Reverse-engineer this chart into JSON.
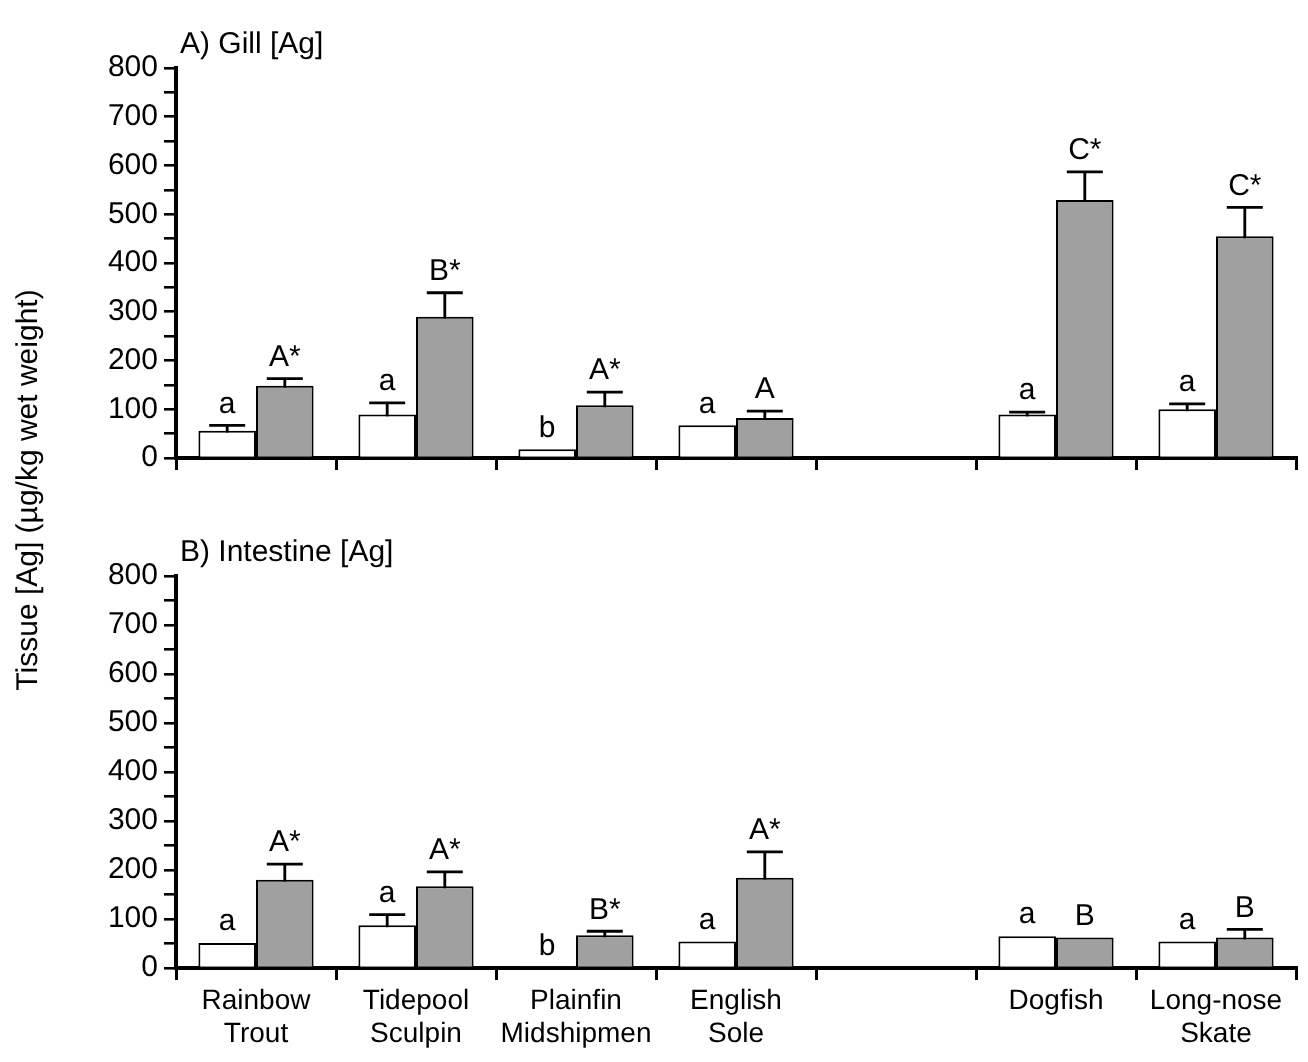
{
  "chart_data": [
    {
      "type": "bar",
      "title": "A) Gill [Ag]",
      "ylabel": "Tissue [Ag]  (µg/kg wet weight)",
      "categories": [
        null,
        null,
        null,
        null,
        null,
        null,
        null
      ],
      "ylim": [
        0,
        800
      ],
      "yticks": [
        0,
        {
          "value": 50,
          "label": null
        },
        100,
        {
          "value": 150,
          "label": null
        },
        200,
        {
          "value": 250,
          "label": null
        },
        300,
        {
          "value": 350,
          "label": null
        },
        400,
        {
          "value": 450,
          "label": null
        },
        500,
        {
          "value": 550,
          "label": null
        },
        600,
        {
          "value": 650,
          "label": null
        },
        700,
        {
          "value": 750,
          "label": null
        },
        800
      ],
      "series": [
        {
          "color": "#ffffff",
          "values": [
            56,
            89,
            18,
            67,
            null,
            89,
            100
          ],
          "errors": [
            11,
            24,
            null,
            null,
            null,
            5,
            11
          ],
          "value_labels": [
            "a",
            "a",
            "b",
            "a",
            null,
            "a",
            "a"
          ]
        },
        {
          "color": "#a0a0a0",
          "values": [
            148,
            290,
            108,
            82,
            null,
            529,
            455
          ],
          "errors": [
            15,
            49,
            27,
            14,
            null,
            58,
            59
          ],
          "value_labels": [
            "A*",
            "B*",
            "A*",
            "A",
            null,
            "C*",
            "C*"
          ]
        }
      ]
    },
    {
      "type": "bar",
      "title": "B) Intestine [Ag]",
      "categories": [
        "Rainbow Trout",
        "Tidepool Sculpin",
        "Plainfin Midshipmen",
        "English Sole",
        null,
        "Dogfish",
        "Long-nose Skate"
      ],
      "ylim": [
        0,
        800
      ],
      "yticks": [
        0,
        {
          "value": 50,
          "label": null
        },
        100,
        {
          "value": 150,
          "label": null
        },
        200,
        {
          "value": 250,
          "label": null
        },
        300,
        {
          "value": 350,
          "label": null
        },
        400,
        {
          "value": 450,
          "label": null
        },
        500,
        {
          "value": 550,
          "label": null
        },
        600,
        {
          "value": 650,
          "label": null
        },
        700,
        {
          "value": 750,
          "label": null
        },
        800
      ],
      "series": [
        {
          "color": "#ffffff",
          "values": [
            51,
            87,
            1,
            54,
            null,
            65,
            54
          ],
          "errors": [
            null,
            22,
            null,
            null,
            null,
            null,
            null
          ],
          "value_labels": [
            "a",
            "a",
            "b",
            "a",
            null,
            "a",
            "a"
          ]
        },
        {
          "color": "#a0a0a0",
          "values": [
            180,
            167,
            67,
            184,
            null,
            62,
            62
          ],
          "errors": [
            32,
            29,
            8,
            53,
            null,
            null,
            17
          ],
          "value_labels": [
            "A*",
            "A*",
            "B*",
            "A*",
            null,
            "B",
            "B"
          ]
        }
      ]
    }
  ]
}
